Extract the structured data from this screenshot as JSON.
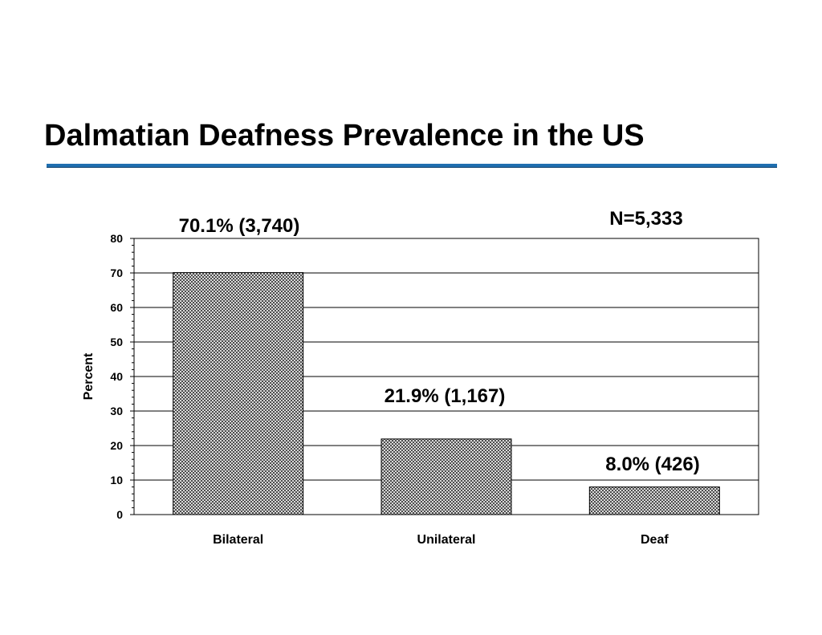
{
  "slide": {
    "title": "Dalmatian Deafness Prevalence in the US"
  },
  "colors": {
    "rule": "#1f6fb0",
    "bar_fill": "#4d4d4d",
    "bar_pattern_bg": "#d9d9d9",
    "gridline": "#000000"
  },
  "chart_data": {
    "type": "bar",
    "categories": [
      "Bilateral",
      "Unilateral",
      "Deaf"
    ],
    "values": [
      70.1,
      21.9,
      8.0
    ],
    "data_labels": [
      "70.1% (3,740)",
      "21.9% (1,167)",
      "8.0% (426)"
    ],
    "annotation": "N=5,333",
    "title": "",
    "xlabel": "",
    "ylabel": "Percent",
    "ylim": [
      0,
      80
    ],
    "yticks": [
      0,
      10,
      20,
      30,
      40,
      50,
      60,
      70,
      80
    ],
    "grid": true,
    "legend": "none"
  }
}
